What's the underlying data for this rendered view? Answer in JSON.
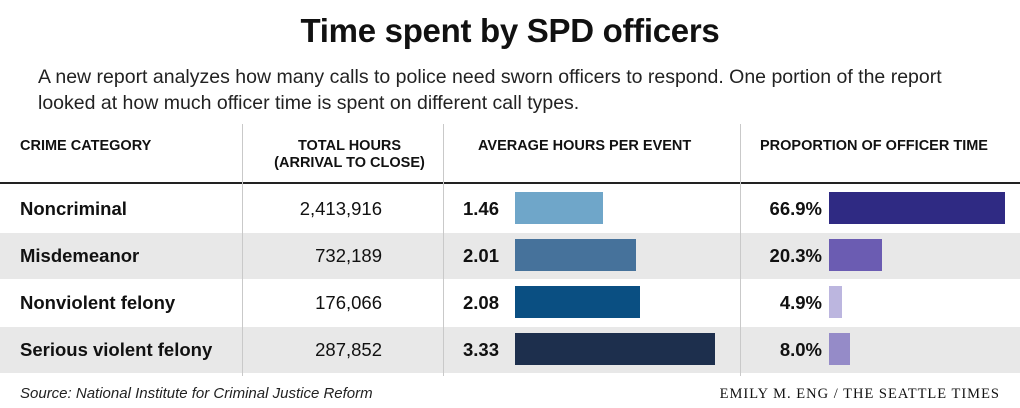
{
  "header": {
    "title": "Time spent by SPD officers",
    "subtitle": "A new report analyzes how many calls to police need sworn officers to respond. One portion of the report looked at how much officer time is spent on different call types."
  },
  "columns": {
    "category": "CRIME CATEGORY",
    "total_line1": "TOTAL HOURS",
    "total_line2": "(ARRIVAL TO CLOSE)",
    "average": "AVERAGE HOURS PER EVENT",
    "proportion": "PROPORTION OF OFFICER TIME"
  },
  "chart_data": {
    "type": "table",
    "title": "Time spent by SPD officers",
    "columns": [
      "Crime category",
      "Total hours (arrival to close)",
      "Average hours per event",
      "Proportion of officer time"
    ],
    "categories": [
      "Noncriminal",
      "Misdemeanor",
      "Nonviolent felony",
      "Serious violent felony"
    ],
    "total_hours": [
      "2,413,916",
      "732,189",
      "176,066",
      "287,852"
    ],
    "avg_hours": [
      1.46,
      2.01,
      2.08,
      3.33
    ],
    "avg_hours_labels": [
      "1.46",
      "2.01",
      "2.08",
      "3.33"
    ],
    "proportion": [
      66.9,
      20.3,
      4.9,
      8.0
    ],
    "proportion_labels": [
      "66.9%",
      "20.3%",
      "4.9%",
      "8.0%"
    ],
    "avg_colors": [
      "#6fa6c9",
      "#46729b",
      "#0a4f82",
      "#1d2f4d"
    ],
    "prop_colors": [
      "#2f2a83",
      "#6b5cb2",
      "#bcb6df",
      "#958bc8"
    ],
    "avg_max": 3.33,
    "prop_max": 66.9
  },
  "footer": {
    "source": "Source: National Institute for Criminal Justice Reform",
    "credit": "EMILY M. ENG / THE SEATTLE TIMES"
  }
}
